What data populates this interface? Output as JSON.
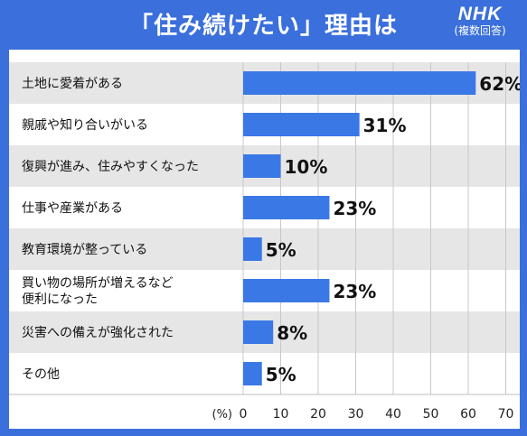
{
  "header": {
    "title": "「住み続けたい」理由は",
    "brand": "NHK",
    "note": "(複数回答)"
  },
  "chart_data": {
    "type": "bar",
    "orientation": "horizontal",
    "title": "「住み続けたい」理由は",
    "categories": [
      "土地に愛着がある",
      "親戚や知り合いがいる",
      "復興が進み、住みやすくなった",
      "仕事や産業がある",
      "教育環境が整っている",
      "買い物の場所が増えるなど\n便利になった",
      "災害への備えが強化された",
      "その他"
    ],
    "values": [
      62,
      31,
      10,
      23,
      5,
      23,
      8,
      5
    ],
    "value_labels": [
      "62%",
      "31%",
      "10%",
      "23%",
      "5%",
      "23%",
      "8%",
      "5%"
    ],
    "xlabel": "(%)",
    "xlim": [
      0,
      70
    ],
    "xticks": [
      0,
      10,
      20,
      30,
      40,
      50,
      60,
      70
    ],
    "grid": true,
    "legend": "none",
    "colors": {
      "bar": "#3a78e6",
      "stripe": "#e6e6e6",
      "grid": "#c8c8c8",
      "frame": "#3a6fdc"
    }
  }
}
